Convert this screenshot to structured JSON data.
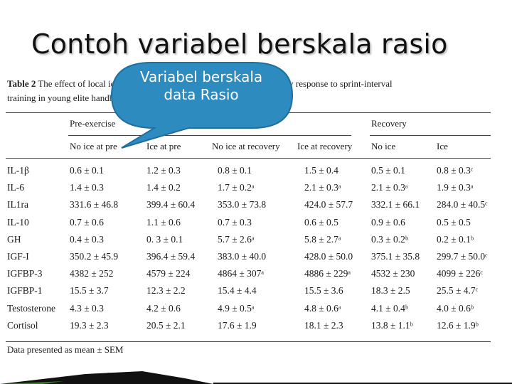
{
  "slide": {
    "title": "Contoh variabel berskala rasio",
    "callout_text": "Variabel berskala data Rasio"
  },
  "table": {
    "label": "Table 2",
    "caption_line1": "The effect of local ice application on the hormonal and inflammatory response to sprint-interval",
    "caption_line2": "training in young elite handball players",
    "group_headers": [
      "Pre-exercise",
      "Recovery"
    ],
    "column_headers": [
      "No ice at pre",
      "Ice at pre",
      "No ice at recovery",
      "Ice at recovery",
      "No ice",
      "Ice"
    ],
    "rows": [
      {
        "label": "IL-1β",
        "values": [
          "0.6 ± 0.1",
          "1.2 ± 0.3",
          "0.8 ± 0.1",
          "1.5 ± 0.4",
          "0.5 ± 0.1",
          "0.8 ± 0.3ᶜ"
        ]
      },
      {
        "label": "IL-6",
        "values": [
          "1.4 ± 0.3",
          "1.4 ± 0.2",
          "1.7 ± 0.2ᵃ",
          "2.1 ± 0.3ᵃ",
          "2.1 ± 0.3ᵃ",
          "1.9 ± 0.3ᵃ"
        ]
      },
      {
        "label": "IL1ra",
        "values": [
          "331.6 ± 46.8",
          "399.4 ± 60.4",
          "353.0 ± 73.8",
          "424.0 ± 57.7",
          "332.1 ± 66.1",
          "284.0 ± 40.5ᶜ"
        ]
      },
      {
        "label": "IL-10",
        "values": [
          "0.7 ± 0.6",
          "1.1 ± 0.6",
          "0.7 ± 0.3",
          "0.6 ± 0.5",
          "0.9 ± 0.6",
          "0.5 ± 0.5"
        ]
      },
      {
        "label": "GH",
        "values": [
          "0.4 ± 0.3",
          "0. 3 ± 0.1",
          "5.7 ± 2.6ᵃ",
          "5.8 ± 2.7ᵃ",
          "0.3 ± 0.2ᵇ",
          "0.2 ± 0.1ᵇ"
        ]
      },
      {
        "label": "IGF-I",
        "values": [
          "350.2 ± 45.9",
          "396.4 ± 59.4",
          "383.0 ± 40.0",
          "428.0 ± 50.0",
          "375.1 ± 35.8",
          "299.7 ± 50.0ᶜ"
        ]
      },
      {
        "label": "IGFBP-3",
        "values": [
          "4382 ± 252",
          "4579 ± 224",
          "4864 ± 307ᵃ",
          "4886 ± 229ᵃ",
          "4532 ± 230",
          "4099 ± 226ᶜ"
        ]
      },
      {
        "label": "IGFBP-1",
        "values": [
          "15.5 ± 3.7",
          "12.3 ± 2.2",
          "15.4 ± 4.4",
          "15.5 ± 3.6",
          "18.3 ± 2.5",
          "25.5 ± 4.7ᶜ"
        ]
      },
      {
        "label": "Testosterone",
        "values": [
          "4.3 ± 0.3",
          "4.2 ± 0.6",
          "4.9 ± 0.5ᵃ",
          "4.8 ± 0.6ᵃ",
          "4.1 ± 0.4ᵇ",
          "4.0 ± 0.6ᵇ"
        ]
      },
      {
        "label": "Cortisol",
        "values": [
          "19.3 ± 2.3",
          "20.5 ± 2.1",
          "17.6 ± 1.9",
          "18.1 ± 2.3",
          "13.8 ± 1.1ᵇ",
          "12.6 ± 1.9ᵇ"
        ]
      }
    ],
    "footnote": "Data presented as mean ± SEM"
  },
  "colors": {
    "callout_fill": "#2e8bbf",
    "callout_stroke": "#1f6f9e",
    "bar_dark": "#111111",
    "bar_accent": "#3a7a2a"
  }
}
